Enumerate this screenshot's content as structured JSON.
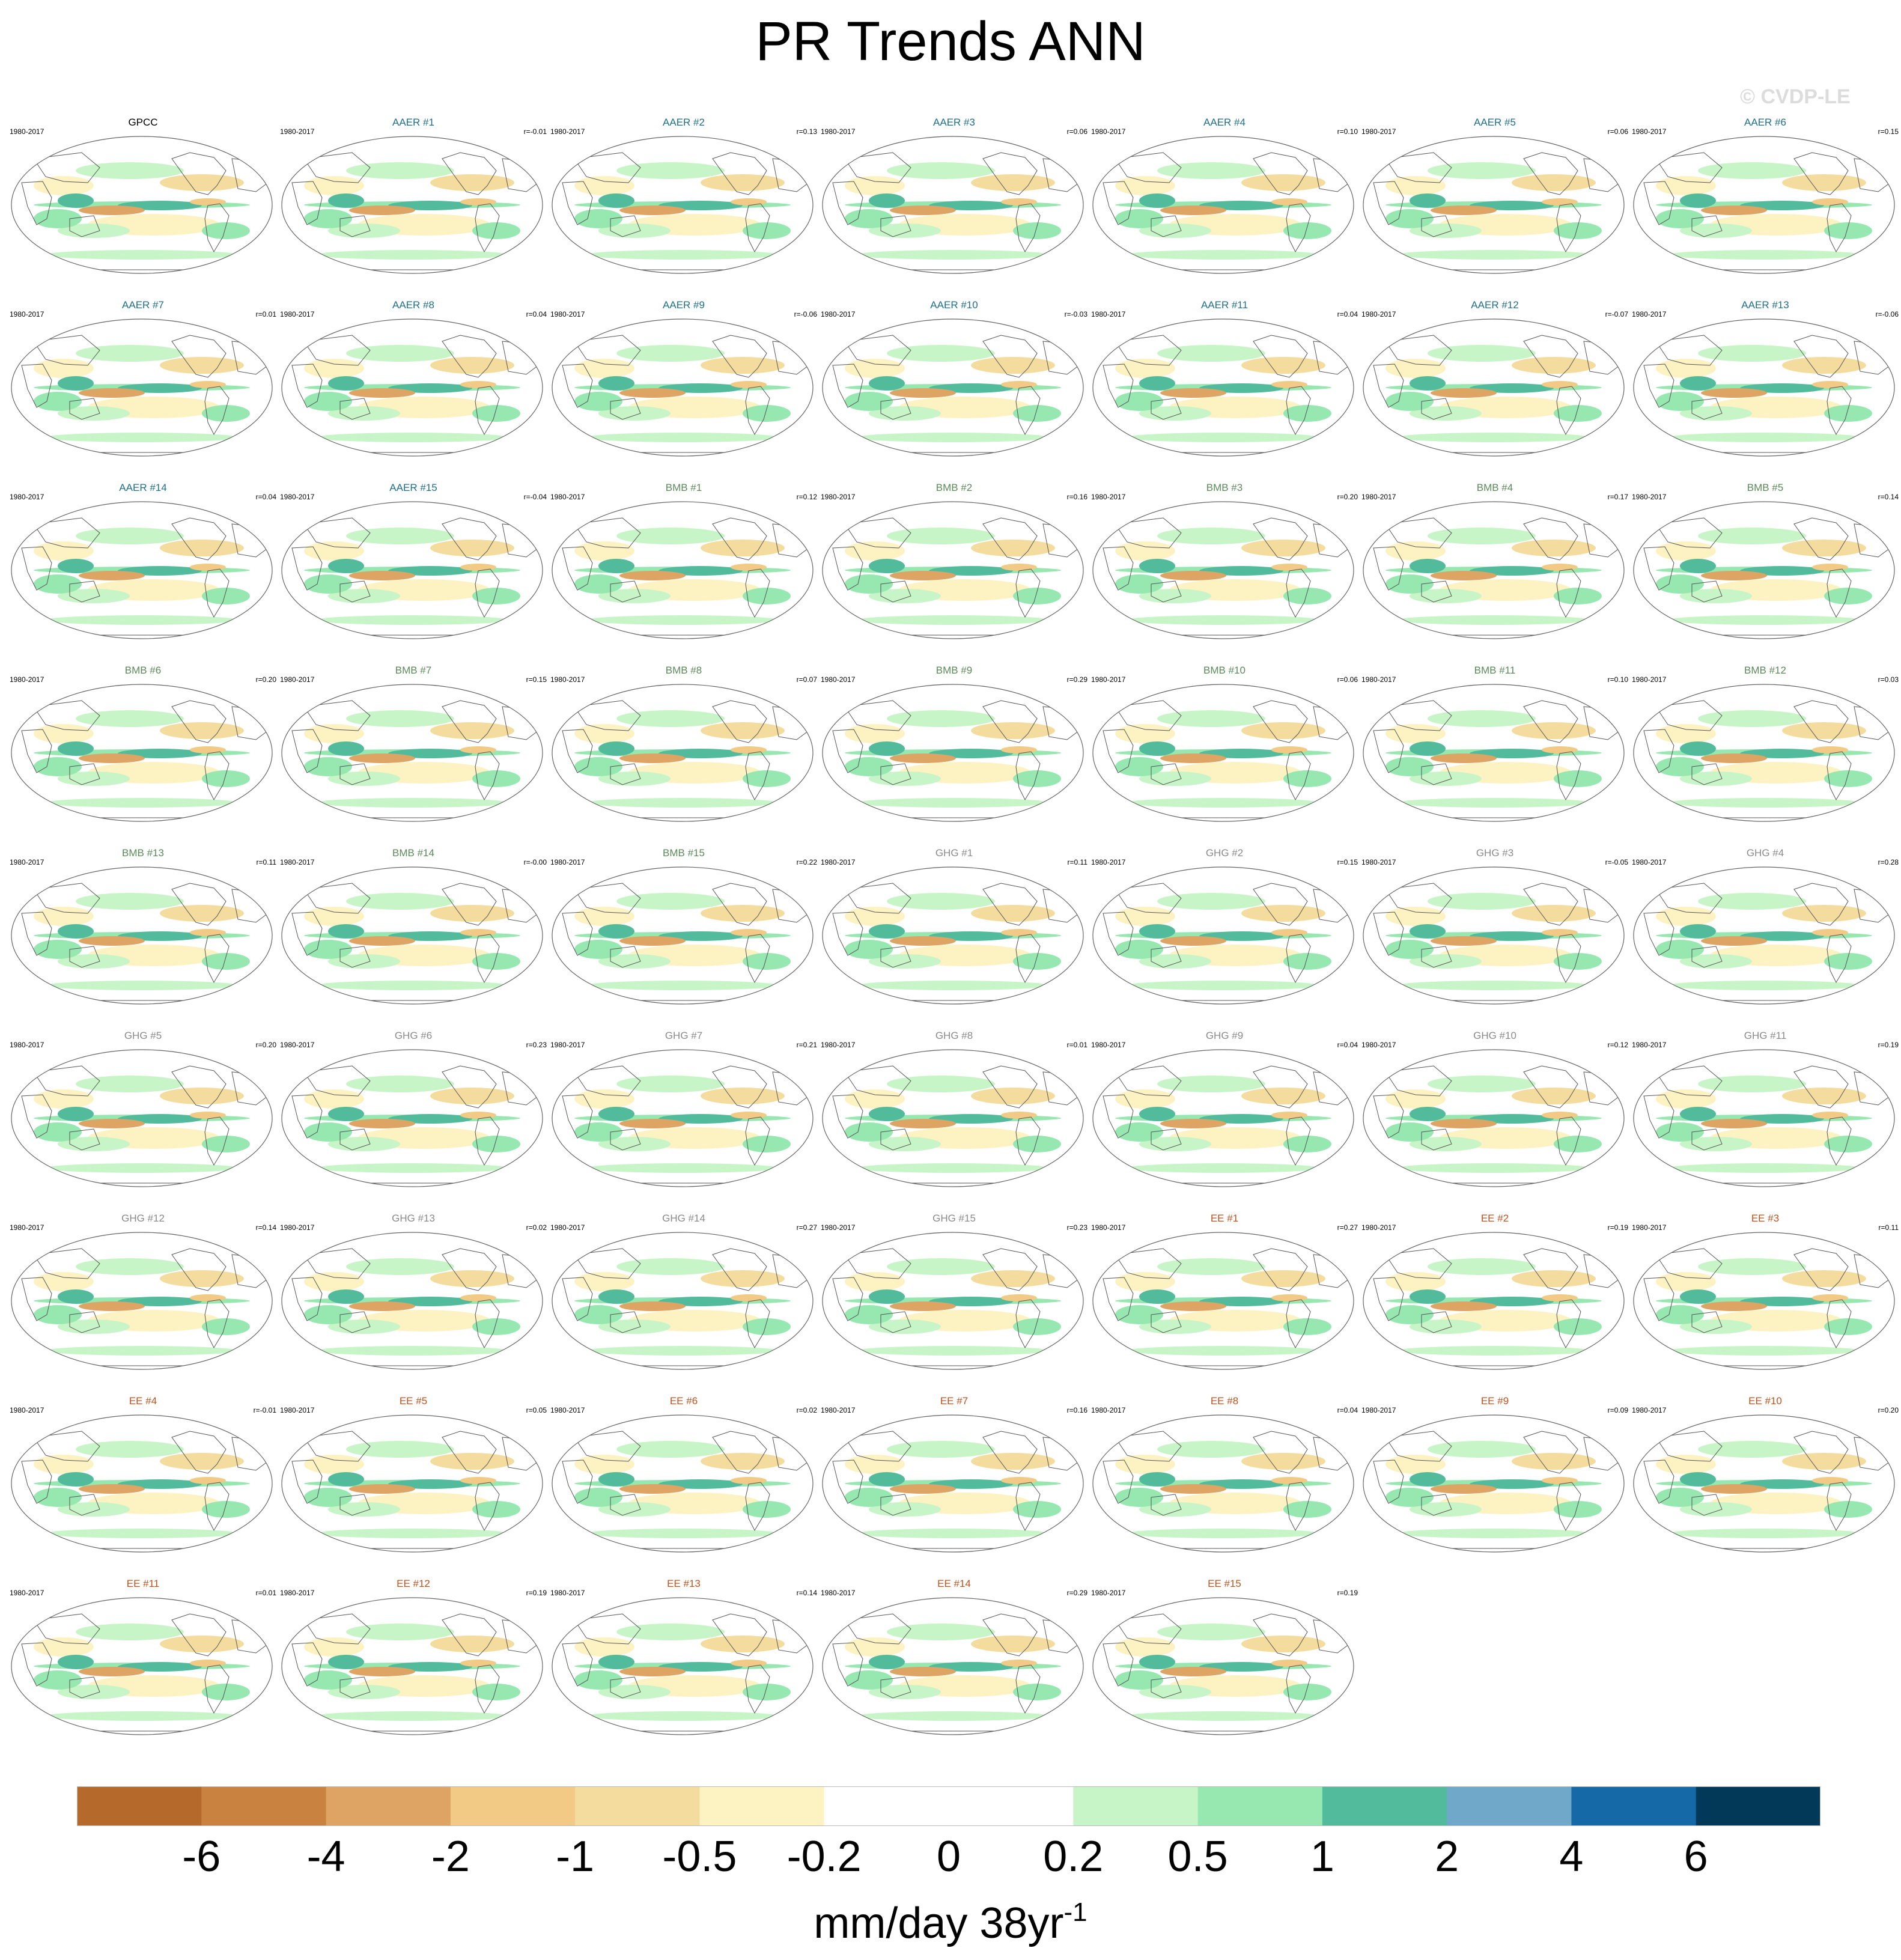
{
  "title": "PR Trends ANN",
  "watermark": "© CVDP-LE",
  "colors": {
    "AAER": "#1f6f8b",
    "BMB": "#5b8a5a",
    "GHG": "#8a8a8a",
    "EE": "#c0521e",
    "obs": "#000000"
  },
  "chart_data": {
    "type": "map-panels",
    "period": "1980-2017",
    "panels": [
      {
        "name": "GPCC",
        "group": "obs",
        "period": "1980-2017",
        "r": ""
      },
      {
        "name": "AAER #1",
        "group": "AAER",
        "period": "1980-2017",
        "r": "r=-0.01"
      },
      {
        "name": "AAER #2",
        "group": "AAER",
        "period": "1980-2017",
        "r": "r=0.13"
      },
      {
        "name": "AAER #3",
        "group": "AAER",
        "period": "1980-2017",
        "r": "r=0.06"
      },
      {
        "name": "AAER #4",
        "group": "AAER",
        "period": "1980-2017",
        "r": "r=0.10"
      },
      {
        "name": "AAER #5",
        "group": "AAER",
        "period": "1980-2017",
        "r": "r=0.06"
      },
      {
        "name": "AAER #6",
        "group": "AAER",
        "period": "1980-2017",
        "r": "r=0.15"
      },
      {
        "name": "AAER #7",
        "group": "AAER",
        "period": "1980-2017",
        "r": "r=0.01"
      },
      {
        "name": "AAER #8",
        "group": "AAER",
        "period": "1980-2017",
        "r": "r=0.04"
      },
      {
        "name": "AAER #9",
        "group": "AAER",
        "period": "1980-2017",
        "r": "r=-0.06"
      },
      {
        "name": "AAER #10",
        "group": "AAER",
        "period": "1980-2017",
        "r": "r=-0.03"
      },
      {
        "name": "AAER #11",
        "group": "AAER",
        "period": "1980-2017",
        "r": "r=0.04"
      },
      {
        "name": "AAER #12",
        "group": "AAER",
        "period": "1980-2017",
        "r": "r=-0.07"
      },
      {
        "name": "AAER #13",
        "group": "AAER",
        "period": "1980-2017",
        "r": "r=-0.06"
      },
      {
        "name": "AAER #14",
        "group": "AAER",
        "period": "1980-2017",
        "r": "r=0.04"
      },
      {
        "name": "AAER #15",
        "group": "AAER",
        "period": "1980-2017",
        "r": "r=-0.04"
      },
      {
        "name": "BMB #1",
        "group": "BMB",
        "period": "1980-2017",
        "r": "r=0.12"
      },
      {
        "name": "BMB #2",
        "group": "BMB",
        "period": "1980-2017",
        "r": "r=0.16"
      },
      {
        "name": "BMB #3",
        "group": "BMB",
        "period": "1980-2017",
        "r": "r=0.20"
      },
      {
        "name": "BMB #4",
        "group": "BMB",
        "period": "1980-2017",
        "r": "r=0.17"
      },
      {
        "name": "BMB #5",
        "group": "BMB",
        "period": "1980-2017",
        "r": "r=0.14"
      },
      {
        "name": "BMB #6",
        "group": "BMB",
        "period": "1980-2017",
        "r": "r=0.20"
      },
      {
        "name": "BMB #7",
        "group": "BMB",
        "period": "1980-2017",
        "r": "r=0.15"
      },
      {
        "name": "BMB #8",
        "group": "BMB",
        "period": "1980-2017",
        "r": "r=0.07"
      },
      {
        "name": "BMB #9",
        "group": "BMB",
        "period": "1980-2017",
        "r": "r=0.29"
      },
      {
        "name": "BMB #10",
        "group": "BMB",
        "period": "1980-2017",
        "r": "r=0.06"
      },
      {
        "name": "BMB #11",
        "group": "BMB",
        "period": "1980-2017",
        "r": "r=0.10"
      },
      {
        "name": "BMB #12",
        "group": "BMB",
        "period": "1980-2017",
        "r": "r=0.03"
      },
      {
        "name": "BMB #13",
        "group": "BMB",
        "period": "1980-2017",
        "r": "r=0.11"
      },
      {
        "name": "BMB #14",
        "group": "BMB",
        "period": "1980-2017",
        "r": "r=-0.00"
      },
      {
        "name": "BMB #15",
        "group": "BMB",
        "period": "1980-2017",
        "r": "r=0.22"
      },
      {
        "name": "GHG #1",
        "group": "GHG",
        "period": "1980-2017",
        "r": "r=0.11"
      },
      {
        "name": "GHG #2",
        "group": "GHG",
        "period": "1980-2017",
        "r": "r=0.15"
      },
      {
        "name": "GHG #3",
        "group": "GHG",
        "period": "1980-2017",
        "r": "r=-0.05"
      },
      {
        "name": "GHG #4",
        "group": "GHG",
        "period": "1980-2017",
        "r": "r=0.28"
      },
      {
        "name": "GHG #5",
        "group": "GHG",
        "period": "1980-2017",
        "r": "r=0.20"
      },
      {
        "name": "GHG #6",
        "group": "GHG",
        "period": "1980-2017",
        "r": "r=0.23"
      },
      {
        "name": "GHG #7",
        "group": "GHG",
        "period": "1980-2017",
        "r": "r=0.21"
      },
      {
        "name": "GHG #8",
        "group": "GHG",
        "period": "1980-2017",
        "r": "r=0.01"
      },
      {
        "name": "GHG #9",
        "group": "GHG",
        "period": "1980-2017",
        "r": "r=0.04"
      },
      {
        "name": "GHG #10",
        "group": "GHG",
        "period": "1980-2017",
        "r": "r=0.12"
      },
      {
        "name": "GHG #11",
        "group": "GHG",
        "period": "1980-2017",
        "r": "r=0.19"
      },
      {
        "name": "GHG #12",
        "group": "GHG",
        "period": "1980-2017",
        "r": "r=0.14"
      },
      {
        "name": "GHG #13",
        "group": "GHG",
        "period": "1980-2017",
        "r": "r=0.02"
      },
      {
        "name": "GHG #14",
        "group": "GHG",
        "period": "1980-2017",
        "r": "r=0.27"
      },
      {
        "name": "GHG #15",
        "group": "GHG",
        "period": "1980-2017",
        "r": "r=0.23"
      },
      {
        "name": "EE #1",
        "group": "EE",
        "period": "1980-2017",
        "r": "r=0.27"
      },
      {
        "name": "EE #2",
        "group": "EE",
        "period": "1980-2017",
        "r": "r=0.19"
      },
      {
        "name": "EE #3",
        "group": "EE",
        "period": "1980-2017",
        "r": "r=0.11"
      },
      {
        "name": "EE #4",
        "group": "EE",
        "period": "1980-2017",
        "r": "r=-0.01"
      },
      {
        "name": "EE #5",
        "group": "EE",
        "period": "1980-2017",
        "r": "r=0.05"
      },
      {
        "name": "EE #6",
        "group": "EE",
        "period": "1980-2017",
        "r": "r=0.02"
      },
      {
        "name": "EE #7",
        "group": "EE",
        "period": "1980-2017",
        "r": "r=0.16"
      },
      {
        "name": "EE #8",
        "group": "EE",
        "period": "1980-2017",
        "r": "r=0.04"
      },
      {
        "name": "EE #9",
        "group": "EE",
        "period": "1980-2017",
        "r": "r=0.09"
      },
      {
        "name": "EE #10",
        "group": "EE",
        "period": "1980-2017",
        "r": "r=0.20"
      },
      {
        "name": "EE #11",
        "group": "EE",
        "period": "1980-2017",
        "r": "r=0.01"
      },
      {
        "name": "EE #12",
        "group": "EE",
        "period": "1980-2017",
        "r": "r=0.19"
      },
      {
        "name": "EE #13",
        "group": "EE",
        "period": "1980-2017",
        "r": "r=0.14"
      },
      {
        "name": "EE #14",
        "group": "EE",
        "period": "1980-2017",
        "r": "r=0.29"
      },
      {
        "name": "EE #15",
        "group": "EE",
        "period": "1980-2017",
        "r": "r=0.19"
      }
    ],
    "colorbar": {
      "levels": [
        "-6",
        "-4",
        "-2",
        "-1",
        "-0.5",
        "-0.2",
        "0",
        "0.2",
        "0.5",
        "1",
        "2",
        "4",
        "6"
      ],
      "colors": [
        "#b5692a",
        "#c98240",
        "#dea463",
        "#f2c985",
        "#f4dc9e",
        "#fdf2c2",
        "#ffffff",
        "#ffffff",
        "#c8f5c8",
        "#96e8b0",
        "#52bb9b",
        "#6fa8c8",
        "#1469a6",
        "#023858"
      ],
      "units": "mm/day 38yr",
      "units_superscript": "-1"
    }
  }
}
